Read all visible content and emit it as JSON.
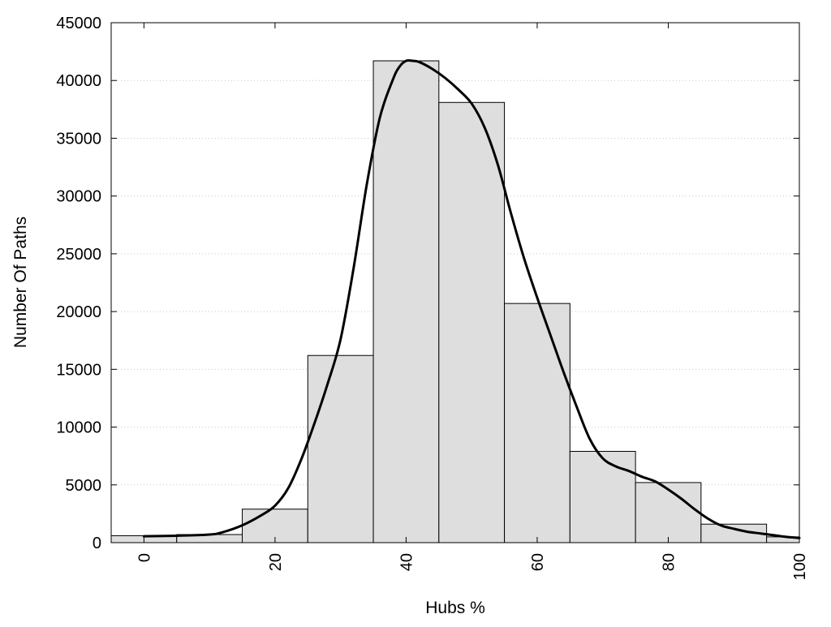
{
  "chart_data": {
    "type": "bar",
    "xlabel": "Hubs %",
    "ylabel": "Number Of Paths",
    "xlim": [
      -5,
      100
    ],
    "ylim": [
      0,
      45000
    ],
    "x_ticks": [
      0,
      20,
      40,
      60,
      80,
      100
    ],
    "y_ticks": [
      0,
      5000,
      10000,
      15000,
      20000,
      25000,
      30000,
      35000,
      40000,
      45000
    ],
    "grid": "horizontal dotted",
    "bin_width": 10,
    "bins": [
      {
        "center": 0,
        "value": 600
      },
      {
        "center": 10,
        "value": 700
      },
      {
        "center": 20,
        "value": 2900
      },
      {
        "center": 30,
        "value": 16200
      },
      {
        "center": 40,
        "value": 41700
      },
      {
        "center": 50,
        "value": 38100
      },
      {
        "center": 60,
        "value": 20700
      },
      {
        "center": 70,
        "value": 7900
      },
      {
        "center": 80,
        "value": 5200
      },
      {
        "center": 90,
        "value": 1600
      },
      {
        "center": 100,
        "value": 500
      }
    ],
    "curve": {
      "type": "line",
      "x": [
        0,
        5,
        10,
        12,
        15,
        18,
        20,
        22,
        24,
        26,
        28,
        30,
        32,
        34,
        36,
        38,
        39,
        40,
        41,
        42,
        44,
        46,
        48,
        50,
        52,
        54,
        56,
        58,
        60,
        62,
        64,
        66,
        68,
        70,
        72,
        74,
        76,
        78,
        80,
        82,
        84,
        86,
        88,
        90,
        92,
        94,
        96,
        98,
        100
      ],
      "y": [
        550,
        600,
        700,
        900,
        1500,
        2400,
        3200,
        4700,
        7200,
        10300,
        13700,
        17600,
        23800,
        31000,
        36800,
        40100,
        41200,
        41700,
        41700,
        41600,
        41000,
        40200,
        39200,
        38000,
        35900,
        32700,
        28500,
        24600,
        21200,
        18000,
        14800,
        11800,
        9000,
        7300,
        6600,
        6200,
        5700,
        5300,
        4600,
        3800,
        2900,
        2100,
        1500,
        1200,
        950,
        800,
        650,
        500,
        400
      ]
    }
  }
}
